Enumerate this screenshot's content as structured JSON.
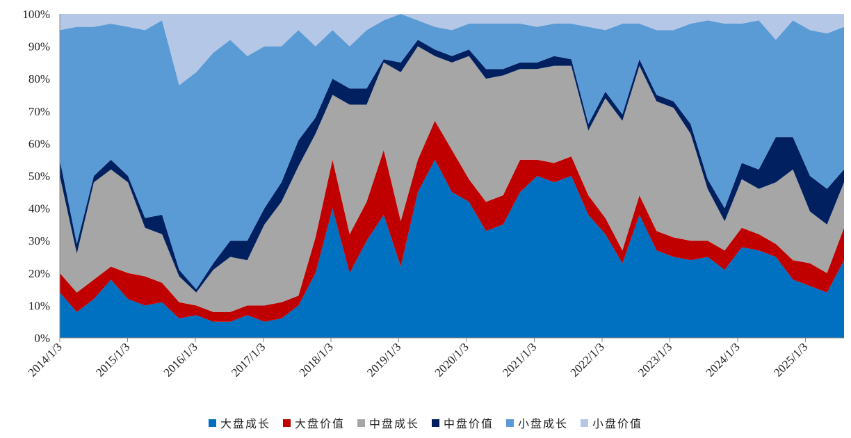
{
  "chart_data": {
    "type": "area",
    "stacked": true,
    "title": "",
    "xlabel": "",
    "ylabel": "",
    "ylim": [
      0,
      100
    ],
    "y_ticks": [
      "0%",
      "10%",
      "20%",
      "30%",
      "40%",
      "50%",
      "60%",
      "70%",
      "80%",
      "90%",
      "100%"
    ],
    "x_ticks": [
      "2014/1/3",
      "2015/1/3",
      "2016/1/3",
      "2017/1/3",
      "2018/1/3",
      "2019/1/3",
      "2020/1/3",
      "2021/1/3",
      "2022/1/3",
      "2023/1/3",
      "2024/1/3",
      "2025/1/3"
    ],
    "x": [
      "2014-01",
      "2014-04",
      "2014-07",
      "2014-10",
      "2015-01",
      "2015-04",
      "2015-07",
      "2015-10",
      "2016-01",
      "2016-04",
      "2016-07",
      "2016-10",
      "2017-01",
      "2017-04",
      "2017-07",
      "2017-10",
      "2018-01",
      "2018-04",
      "2018-07",
      "2018-10",
      "2019-01",
      "2019-04",
      "2019-07",
      "2019-10",
      "2020-01",
      "2020-04",
      "2020-07",
      "2020-10",
      "2021-01",
      "2021-04",
      "2021-07",
      "2021-10",
      "2022-01",
      "2022-04",
      "2022-07",
      "2022-10",
      "2023-01",
      "2023-04",
      "2023-07",
      "2023-10",
      "2024-01",
      "2024-04",
      "2024-07",
      "2024-10",
      "2025-01",
      "2025-04",
      "2025-07"
    ],
    "series": [
      {
        "name": "大盘成长",
        "color": "#0070c0",
        "values": [
          14,
          8,
          12,
          18,
          12,
          10,
          11,
          6,
          7,
          5,
          5,
          7,
          5,
          6,
          10,
          20,
          40,
          20,
          30,
          38,
          22,
          45,
          55,
          45,
          42,
          33,
          35,
          45,
          50,
          48,
          50,
          38,
          32,
          23,
          38,
          27,
          25,
          24,
          25,
          21,
          28,
          27,
          25,
          18,
          16,
          14,
          24
        ]
      },
      {
        "name": "大盘价值",
        "color": "#c00000",
        "values": [
          6,
          6,
          6,
          4,
          8,
          9,
          6,
          5,
          3,
          3,
          3,
          3,
          5,
          5,
          3,
          11,
          15,
          12,
          12,
          20,
          14,
          10,
          12,
          13,
          7,
          9,
          9,
          10,
          5,
          6,
          6,
          6,
          5,
          4,
          6,
          6,
          6,
          6,
          5,
          6,
          6,
          5,
          4,
          6,
          7,
          6,
          10
        ]
      },
      {
        "name": "中盘成长",
        "color": "#a6a6a6",
        "values": [
          30,
          12,
          30,
          30,
          28,
          15,
          15,
          8,
          4,
          13,
          17,
          14,
          25,
          31,
          40,
          32,
          20,
          40,
          30,
          27,
          46,
          35,
          20,
          27,
          38,
          38,
          37,
          28,
          28,
          30,
          28,
          20,
          37,
          40,
          40,
          40,
          40,
          33,
          16,
          9,
          15,
          14,
          19,
          28,
          16,
          15,
          14
        ]
      },
      {
        "name": "中盘价值",
        "color": "#002060",
        "values": [
          5,
          3,
          2,
          3,
          2,
          3,
          6,
          2,
          1,
          2,
          5,
          6,
          5,
          6,
          8,
          5,
          5,
          5,
          5,
          1,
          3,
          2,
          2,
          2,
          2,
          3,
          2,
          2,
          2,
          3,
          2,
          2,
          2,
          2,
          2,
          2,
          2,
          3,
          3,
          4,
          5,
          6,
          14,
          10,
          11,
          11,
          4
        ]
      },
      {
        "name": "小盘成长",
        "color": "#5b9bd5",
        "values": [
          40,
          67,
          46,
          42,
          46,
          58,
          60,
          57,
          67,
          65,
          62,
          57,
          50,
          42,
          34,
          22,
          15,
          13,
          18,
          12,
          15,
          6,
          7,
          8,
          8,
          14,
          14,
          12,
          11,
          10,
          11,
          30,
          19,
          28,
          11,
          20,
          22,
          31,
          49,
          57,
          43,
          46,
          30,
          36,
          45,
          48,
          44
        ]
      },
      {
        "name": "小盘价值",
        "color": "#b4c7e7",
        "values": [
          5,
          4,
          4,
          3,
          4,
          5,
          2,
          22,
          18,
          12,
          8,
          13,
          10,
          10,
          5,
          10,
          5,
          10,
          5,
          2,
          0,
          2,
          4,
          5,
          3,
          3,
          3,
          3,
          4,
          3,
          3,
          4,
          5,
          3,
          3,
          5,
          5,
          3,
          2,
          3,
          3,
          2,
          8,
          2,
          5,
          6,
          4
        ]
      }
    ],
    "legend_position": "bottom-center",
    "grid": false
  }
}
